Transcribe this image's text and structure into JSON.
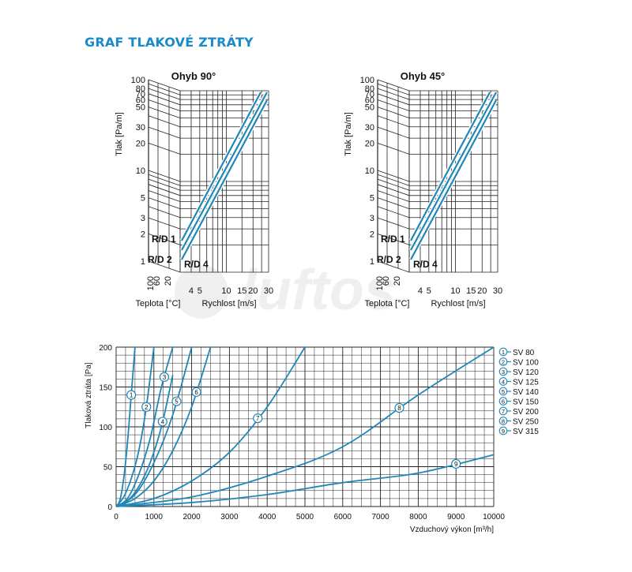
{
  "page": {
    "title": "GRAF TLAKOVÉ ZTRÁTY",
    "watermark": "luftos",
    "colors": {
      "title": "#1b8ac9",
      "curve": "#1f87b8",
      "grid": "#222222",
      "label": "#111111"
    }
  },
  "chart_data": [
    {
      "type": "nomogram",
      "title": "Ohyb 90°",
      "ylabel": "Tlak [Pa/m]",
      "y_ticks": [
        "1",
        "2",
        "3",
        "5",
        "10",
        "20",
        "30",
        "50",
        "60",
        "70",
        "80",
        "100"
      ],
      "left_axis_label": "Teplota [°C]",
      "left_ticks": [
        "100",
        "60",
        "20"
      ],
      "xlabel": "Rychlost [m/s]",
      "x_ticks": [
        "4",
        "5",
        "10",
        "15",
        "20",
        "30"
      ],
      "curve_labels": [
        "R/D 1",
        "R/D 2",
        "R/D 4"
      ],
      "scale": "log-log"
    },
    {
      "type": "nomogram",
      "title": "Ohyb 45°",
      "ylabel": "Tlak [Pa/m]",
      "y_ticks": [
        "1",
        "2",
        "3",
        "5",
        "10",
        "20",
        "30",
        "50",
        "60",
        "70",
        "80",
        "100"
      ],
      "left_axis_label": "Teplota [°C]",
      "left_ticks": [
        "100",
        "60",
        "20"
      ],
      "xlabel": "Rychlost [m/s]",
      "x_ticks": [
        "4",
        "5",
        "10",
        "15",
        "20",
        "30"
      ],
      "curve_labels": [
        "R/D 1",
        "R/D 2",
        "R/D 4"
      ],
      "scale": "log-log"
    },
    {
      "type": "line",
      "xlabel": "Vzduchový výkon [m³/h]",
      "ylabel": "Tlaková ztráta [Pa]",
      "xlim": [
        0,
        10000
      ],
      "ylim": [
        0,
        200
      ],
      "x_ticks": [
        "0",
        "1000",
        "2000",
        "3000",
        "4000",
        "5000",
        "6000",
        "7000",
        "8000",
        "9000",
        "10000"
      ],
      "y_ticks": [
        "0",
        "50",
        "100",
        "150",
        "200"
      ],
      "grid": true,
      "legend": "right",
      "series": [
        {
          "name": "SV 80",
          "marker": "1",
          "x": [
            0,
            100,
            200,
            300,
            400,
            500
          ],
          "y": [
            0,
            8,
            35,
            80,
            140,
            200
          ]
        },
        {
          "name": "SV 100",
          "marker": "2",
          "x": [
            0,
            200,
            400,
            600,
            800,
            1000
          ],
          "y": [
            0,
            12,
            35,
            70,
            125,
            200
          ]
        },
        {
          "name": "SV 120",
          "marker": "3",
          "x": [
            0,
            300,
            600,
            900,
            1200,
            1500
          ],
          "y": [
            0,
            10,
            40,
            85,
            150,
            200
          ]
        },
        {
          "name": "SV 125",
          "marker": "4",
          "x": [
            0,
            300,
            600,
            900,
            1200,
            1500
          ],
          "y": [
            0,
            7,
            25,
            55,
            100,
            165
          ]
        },
        {
          "name": "SV 140",
          "marker": "5",
          "x": [
            0,
            500,
            1000,
            1500,
            2000
          ],
          "y": [
            0,
            15,
            55,
            115,
            200
          ]
        },
        {
          "name": "SV 150",
          "marker": "6",
          "x": [
            0,
            500,
            1000,
            1500,
            2000,
            2500
          ],
          "y": [
            0,
            10,
            32,
            70,
            125,
            200
          ]
        },
        {
          "name": "SV 200",
          "marker": "7",
          "x": [
            0,
            1000,
            2000,
            3000,
            4000,
            5000
          ],
          "y": [
            0,
            10,
            32,
            68,
            125,
            200
          ]
        },
        {
          "name": "SV 250",
          "marker": "8",
          "x": [
            0,
            2000,
            4000,
            6000,
            8000,
            10000
          ],
          "y": [
            0,
            12,
            38,
            75,
            140,
            200
          ]
        },
        {
          "name": "SV 315",
          "marker": "9",
          "x": [
            0,
            2000,
            4000,
            6000,
            8000,
            10000
          ],
          "y": [
            0,
            5,
            15,
            30,
            42,
            65
          ]
        }
      ]
    }
  ]
}
